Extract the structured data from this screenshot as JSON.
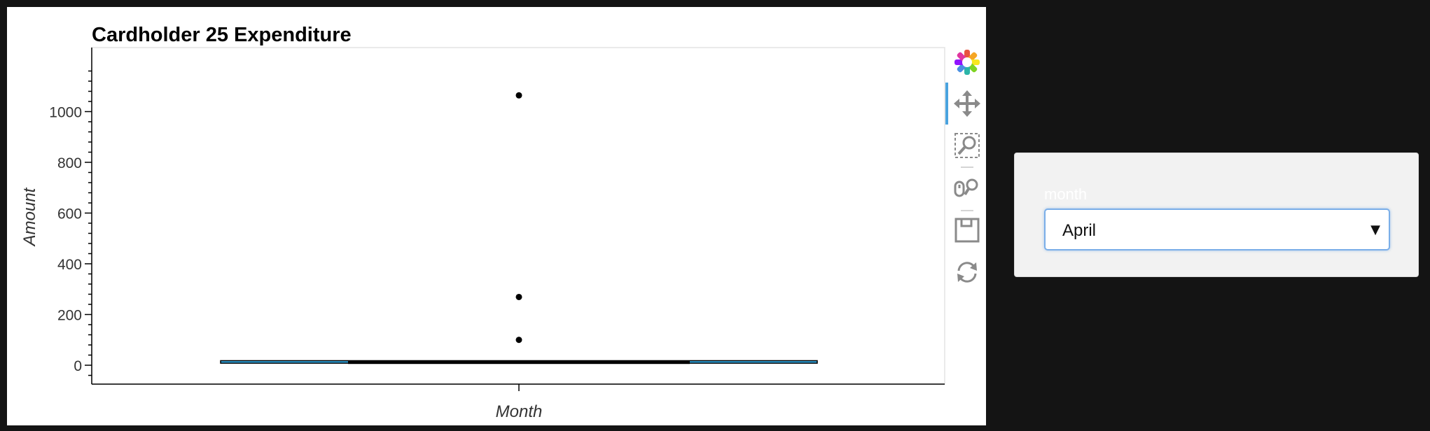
{
  "chart_data": {
    "type": "box",
    "title": "Cardholder 25 Expenditure",
    "xlabel": "Month",
    "ylabel": "Amount",
    "categories": [
      ""
    ],
    "ylim": [
      -100,
      1170
    ],
    "yticks": [
      0,
      200,
      400,
      600,
      800,
      1000
    ],
    "box": {
      "whisker_low": 8,
      "q1": 9,
      "median": 12,
      "q3": 16,
      "whisker_high": 18
    },
    "outliers": [
      1064,
      269,
      100
    ],
    "colors": {
      "box_fill": "#30a2da",
      "box_stroke": "#000000",
      "whisker": "#000000",
      "outlier": "#000000"
    }
  },
  "toolbar": {
    "tools": [
      "bokeh-logo-icon",
      "pan-icon",
      "box-zoom-icon",
      "wheel-zoom-icon",
      "save-icon",
      "reset-icon"
    ]
  },
  "widget": {
    "label": "month",
    "selected": "April"
  }
}
